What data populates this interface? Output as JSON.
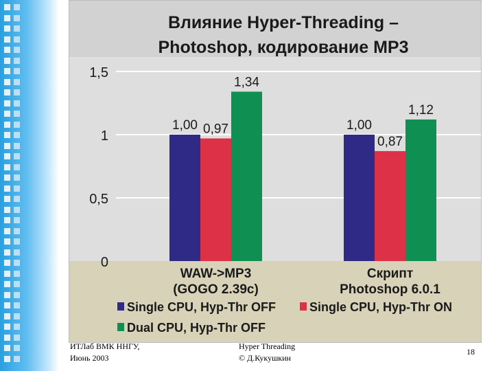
{
  "chart_data": {
    "type": "bar",
    "title_line1": "Влияние Hyper-Threading –",
    "title_line2": "Photoshop, кодирование MP3",
    "categories": [
      {
        "line1": "WAW->MP3",
        "line2": "(GOGO 2.39c)"
      },
      {
        "line1": "Скрипт",
        "line2": "Photoshop 6.0.1"
      }
    ],
    "series": [
      {
        "name": "Single CPU, Hyp-Thr OFF",
        "color": "#2e2a86",
        "values": [
          1.0,
          1.0
        ],
        "labels": [
          "1,00",
          "1,00"
        ]
      },
      {
        "name": "Single CPU, Hyp-Thr ON",
        "color": "#dc3146",
        "values": [
          0.97,
          0.87
        ],
        "labels": [
          "0,97",
          "0,87"
        ]
      },
      {
        "name": "Dual CPU, Hyp-Thr OFF",
        "color": "#0f8f52",
        "values": [
          1.34,
          1.12
        ],
        "labels": [
          "1,34",
          "1,12"
        ]
      }
    ],
    "ylim": [
      0,
      1.5
    ],
    "yticks": [
      {
        "v": 0,
        "label": "0"
      },
      {
        "v": 0.5,
        "label": "0,5"
      },
      {
        "v": 1,
        "label": "1"
      },
      {
        "v": 1.5,
        "label": "1,5"
      }
    ],
    "grid": true,
    "legend_position": "bottom"
  },
  "footer": {
    "org_line1": "ИТЛаб ВМК ННГУ,",
    "org_line2": "Июнь 2003",
    "topic_line1": "Hyper Threading",
    "topic_line2": "© Д.Кукушкин",
    "page_number": "18"
  },
  "colors": {
    "plot_bg": "#dedede",
    "title_bg": "#d2d2d2",
    "category_bg": "#d8d2b8",
    "gridline": "#ffffff"
  }
}
